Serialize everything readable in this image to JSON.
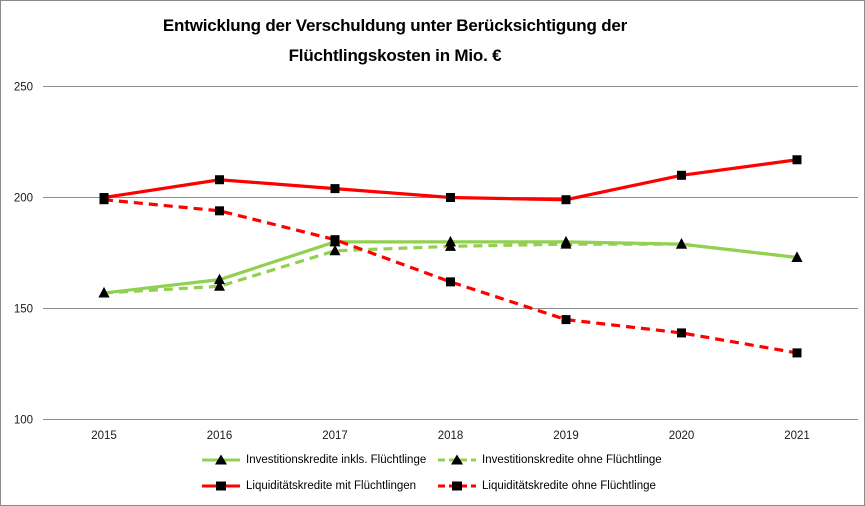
{
  "chart_data": {
    "type": "line",
    "title": "Entwicklung der Verschuldung unter Berücksichtigung der Flüchtlingskosten in Mio. €",
    "title_lines": [
      "Entwicklung der Verschuldung unter Berücksichtigung der",
      "Flüchtlingskosten in Mio. €"
    ],
    "x": [
      2015,
      2016,
      2017,
      2018,
      2019,
      2020,
      2021
    ],
    "ylim": [
      100,
      250
    ],
    "y_ticks": [
      100,
      150,
      200,
      250
    ],
    "grid": "horizontal",
    "legend_position": "bottom",
    "series": [
      {
        "name": "Investitionskredite inkls. Flüchtlinge",
        "color": "#92D050",
        "line": "solid",
        "marker": "triangle",
        "z": 2,
        "values": [
          157,
          163,
          180,
          180,
          180,
          179,
          173
        ]
      },
      {
        "name": "Investitionskredite ohne Flüchtlinge",
        "color": "#92D050",
        "line": "dashed",
        "marker": "triangle",
        "z": 1,
        "values": [
          157,
          160,
          176,
          178,
          179,
          179,
          173
        ]
      },
      {
        "name": "Liquiditätskredite mit Flüchtlingen",
        "color": "#FF0000",
        "line": "solid",
        "marker": "square",
        "z": 3,
        "values": [
          200,
          208,
          204,
          200,
          199,
          210,
          217
        ]
      },
      {
        "name": "Liquiditätskredite ohne Flüchtlinge",
        "color": "#FF0000",
        "line": "dashed",
        "marker": "square",
        "z": 4,
        "values": [
          199,
          194,
          181,
          162,
          145,
          139,
          130
        ]
      }
    ],
    "colors": {
      "grid": "#8c8c8c",
      "axis_text": "#1a1a1a",
      "marker": "#000000"
    }
  }
}
